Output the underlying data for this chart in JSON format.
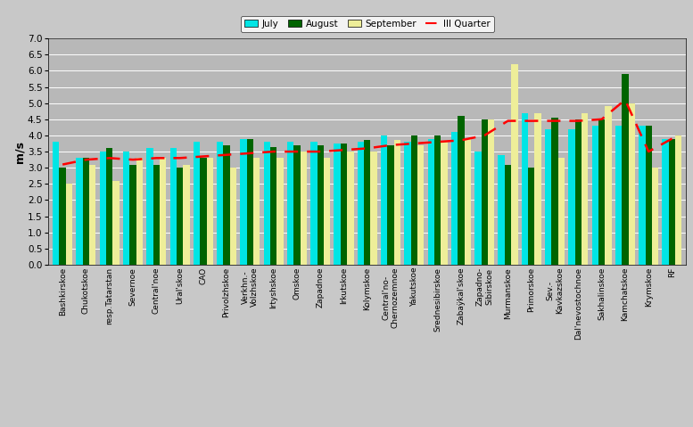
{
  "categories": [
    "Bashkirskoe",
    "Chukotskoe",
    "resp.Tatarstan",
    "Severnoe",
    "Central'noe",
    "Ural'skoe",
    "CAO",
    "Privolzhskoe",
    "Verkhn.-\nVolzhskoe",
    "Irtyshskoe",
    "Omskoe",
    "Zapadnoe",
    "Irkutskoe",
    "Kolymskoe",
    "Central'no-\nChernozemnoe",
    "Yakutskoe",
    "Srednesibirskoe",
    "Zabaÿkal'skoe",
    "Zapadno-\nSibirskoe",
    "Murmanskoe",
    "Primorskoe",
    "Sev.-\nKavkazskoe",
    "Dal'nevostochnoe",
    "Sakhalinskoe",
    "Kamchatskoe",
    "Krymskoe",
    "RF"
  ],
  "july": [
    3.8,
    3.3,
    3.5,
    3.5,
    3.6,
    3.6,
    3.8,
    3.8,
    3.9,
    3.8,
    3.8,
    3.8,
    3.75,
    3.8,
    4.0,
    3.8,
    3.9,
    4.1,
    3.5,
    3.4,
    4.7,
    4.2,
    4.2,
    4.3,
    4.3,
    4.3,
    3.9
  ],
  "august": [
    3.0,
    3.3,
    3.6,
    3.1,
    3.1,
    3.0,
    3.3,
    3.7,
    3.9,
    3.65,
    3.7,
    3.7,
    3.75,
    3.85,
    3.7,
    4.0,
    4.0,
    4.6,
    4.5,
    3.1,
    3.0,
    4.55,
    4.5,
    4.5,
    5.9,
    4.3,
    3.9
  ],
  "september": [
    2.5,
    3.1,
    2.6,
    3.3,
    3.3,
    3.1,
    3.3,
    3.0,
    3.3,
    3.3,
    3.5,
    3.3,
    3.5,
    3.5,
    3.85,
    3.7,
    3.8,
    3.9,
    4.5,
    6.2,
    4.7,
    3.3,
    4.7,
    4.9,
    5.0,
    3.0,
    4.0
  ],
  "quarter": [
    3.1,
    3.25,
    3.3,
    3.25,
    3.3,
    3.3,
    3.35,
    3.4,
    3.45,
    3.5,
    3.5,
    3.5,
    3.55,
    3.6,
    3.7,
    3.75,
    3.8,
    3.85,
    4.0,
    4.45,
    4.45,
    4.45,
    4.45,
    4.5,
    5.1,
    3.5,
    3.9
  ],
  "color_july": "#00E5E5",
  "color_august": "#006400",
  "color_september": "#EEEE99",
  "color_quarter": "#FF0000",
  "ylabel": "m/s",
  "ylim": [
    0,
    7
  ],
  "yticks": [
    0,
    0.5,
    1.0,
    1.5,
    2.0,
    2.5,
    3.0,
    3.5,
    4.0,
    4.5,
    5.0,
    5.5,
    6.0,
    6.5,
    7.0
  ],
  "bg_color": "#B8B8B8",
  "fig_bg_color": "#C8C8C8",
  "bar_width": 0.28
}
